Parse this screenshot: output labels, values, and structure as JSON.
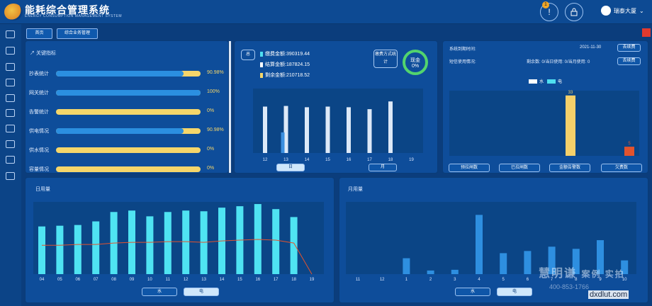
{
  "app": {
    "title": "能耗综合管理系统",
    "subtitle": "ENERGY CONSUMPTION MANAGEMENT SYSTEM",
    "notification_count": "1",
    "user_name": "瑞泰大厦"
  },
  "colors": {
    "accent": "#f5d66a",
    "blue": "#2b8fe0",
    "cyan": "#4fdff0",
    "red": "#e2532e",
    "bg": "#0b3d7c"
  },
  "sidebar_icons": [
    "list-icon",
    "image-icon",
    "cart-icon",
    "monitor-icon",
    "message-icon",
    "download-icon",
    "line-chart-icon",
    "report-icon",
    "grid-icon",
    "gallery-icon"
  ],
  "nav": {
    "home": "首页",
    "current": "综合业务管理"
  },
  "kpi": {
    "title": "关键指标",
    "items": [
      {
        "label": "抄表统计",
        "value": "90.98%",
        "fraction": 0.9098
      },
      {
        "label": "网关统计",
        "value": "100%",
        "fraction": 1.0
      },
      {
        "label": "告警统计",
        "value": "0%",
        "fraction": 0
      },
      {
        "label": "供电情况",
        "value": "90.98%",
        "fraction": 0.9098
      },
      {
        "label": "供水情况",
        "value": "0%",
        "fraction": 0
      },
      {
        "label": "容量情况",
        "value": "0%",
        "fraction": 0
      }
    ]
  },
  "fees": {
    "total_tag": "总",
    "legend": [
      {
        "label": "缴费金额:390319.44",
        "color": "#4fdff0"
      },
      {
        "label": "结算金额:187824.15",
        "color": "#ffffff"
      },
      {
        "label": "剩余金额:210718.52",
        "color": "#f5d66a"
      }
    ],
    "method_label": "缴费方式统计",
    "donut_label": "现金",
    "donut_value": "0%",
    "btn_day": "日",
    "btn_month": "月",
    "chart_data": {
      "type": "bar",
      "categories": [
        "12",
        "13",
        "14",
        "15",
        "16",
        "17",
        "18",
        "19"
      ],
      "series": [
        {
          "name": "缴费金额",
          "values": [
            0,
            0.32,
            0,
            0,
            0,
            0,
            0,
            0
          ]
        },
        {
          "name": "结算金额",
          "values": [
            0.72,
            0.73,
            0.71,
            0.72,
            0.71,
            0.68,
            0.8,
            0
          ]
        }
      ],
      "ylim": [
        0,
        1
      ]
    }
  },
  "sys": {
    "expire_label": "系统到期时间:",
    "expire_date": "2021-11-30",
    "renew_btn": "去续费",
    "sms_label": "短信使用情况:",
    "sms_stats": "剩余数: 0/当日使用: 0/当月使用: 0",
    "sms_btn": "去续费",
    "chart_data": {
      "type": "bar",
      "categories": [
        "预拉闸数",
        "已拉闸数",
        "金额告警数",
        "欠费数"
      ],
      "series": [
        {
          "name": "水",
          "values": [
            0,
            0,
            0,
            0
          ]
        },
        {
          "name": "电",
          "values": [
            0,
            0,
            33,
            5
          ]
        }
      ],
      "data_labels": [
        "33",
        "5"
      ],
      "ylim": [
        0,
        36
      ]
    },
    "buttons": [
      "预拉闸数",
      "已拉闸数",
      "金额告警数",
      "欠费数"
    ]
  },
  "daily": {
    "title": "日用量",
    "btn_water": "水",
    "btn_power": "电",
    "chart_data": {
      "type": "bar",
      "categories": [
        "04",
        "05",
        "06",
        "07",
        "08",
        "09",
        "10",
        "11",
        "12",
        "13",
        "14",
        "15",
        "16",
        "17",
        "18",
        "19"
      ],
      "series": [
        {
          "name": "bars",
          "values": [
            0.66,
            0.67,
            0.68,
            0.73,
            0.86,
            0.88,
            0.8,
            0.86,
            0.88,
            0.87,
            0.92,
            0.94,
            0.97,
            0.9,
            0.79,
            0
          ]
        },
        {
          "name": "line",
          "values": [
            0.4,
            0.4,
            0.41,
            0.41,
            0.43,
            0.44,
            0.44,
            0.45,
            0.45,
            0.44,
            0.46,
            0.47,
            0.48,
            0.47,
            0.43,
            0
          ]
        }
      ],
      "ylim": [
        0,
        1
      ]
    }
  },
  "monthly": {
    "title": "月用量",
    "btn_water": "水",
    "btn_power": "电",
    "chart_data": {
      "type": "bar",
      "categories": [
        "11",
        "12",
        "1",
        "2",
        "3",
        "4",
        "5",
        "6",
        "7",
        "8",
        "9",
        "10"
      ],
      "values": [
        0,
        0,
        0.22,
        0.05,
        0.06,
        0.82,
        0.29,
        0.32,
        0.38,
        0.35,
        0.47,
        0.19
      ],
      "ylim": [
        0,
        1
      ]
    }
  },
  "watermark": {
    "brand": "慧明谦",
    "tag": "案例 实拍",
    "phone": "400-853-1766",
    "site": "dxdlut.com"
  }
}
